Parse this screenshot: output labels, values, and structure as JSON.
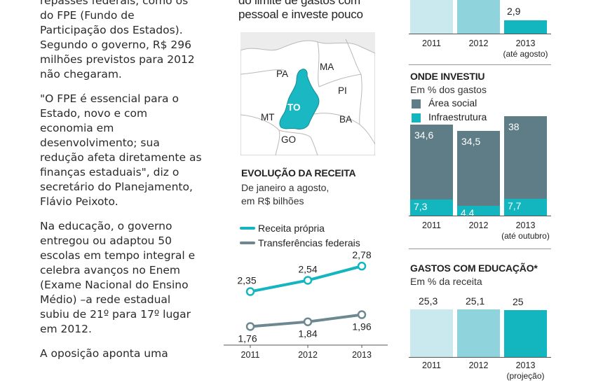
{
  "article": {
    "para1": [
      "repasses federais, como os",
      "do FPE (Fundo de",
      "Participação dos Estados).",
      "Segundo o governo, R$ 296",
      "milhões previstos para 2012",
      "não chegaram."
    ],
    "para2": [
      "\"O FPE é essencial para o",
      "Estado, novo e com",
      "economia em",
      "desenvolvimento; sua",
      "redução afeta diretamente as",
      "finanças estaduais\", diz o",
      "secretário do Planejamento,",
      "Flávio Peixoto."
    ],
    "para3": [
      "Na educação, o governo",
      "entregou ou adaptou 50",
      "escolas em tempo integral e",
      "celebra avanços no Enem",
      "(Exame Nacional do Ensino",
      "Médio) –a rede estadual",
      "subiu de 21º para 17º lugar",
      "em 2012."
    ],
    "para4": [
      "A oposição aponta uma"
    ]
  },
  "middle_header": {
    "line1": "do limite de gastos com",
    "line2": "pessoal e investe pouco"
  },
  "map": {
    "labels": [
      "PA",
      "MA",
      "PI",
      "TO",
      "MT",
      "BA",
      "GO"
    ],
    "colors": {
      "highlight": "#1ab8c2",
      "land": "#ffffff",
      "background": "#ececec",
      "border": "#b9b9b9"
    }
  },
  "colors": {
    "light": "#c9e9ee",
    "mid": "#8fd3dd",
    "teal": "#13b5bf",
    "slate": "#5e7d86",
    "line_gray": "#6d8890"
  },
  "chart_data": [
    {
      "id": "top_bars_partial",
      "type": "bar",
      "categories": [
        "2011",
        "2012",
        "2013"
      ],
      "category_notes": [
        "",
        "",
        "(até agosto)"
      ],
      "values": [
        null,
        null,
        2.9
      ],
      "value_labels": [
        "",
        "",
        "2,9"
      ]
    },
    {
      "id": "onde_investiu",
      "type": "bar",
      "title": "ONDE INVESTIU",
      "subtitle": "Em % dos gastos",
      "categories": [
        "2011",
        "2012",
        "2013"
      ],
      "category_notes": [
        "",
        "",
        "(até outubro)"
      ],
      "series": [
        {
          "name": "Área social",
          "values": [
            34.6,
            34.5,
            38
          ],
          "labels": [
            "34,6",
            "34,5",
            "38"
          ]
        },
        {
          "name": "Infraestrutura",
          "values": [
            7.3,
            4.4,
            7.7
          ],
          "labels": [
            "7,3",
            "4,4",
            "7,7"
          ]
        }
      ]
    },
    {
      "id": "evolucao_receita",
      "type": "line",
      "title": "EVOLUÇÃO DA RECEITA",
      "subtitle_lines": [
        "De janeiro a agosto,",
        "em R$ bilhões"
      ],
      "x": [
        "2011",
        "2012",
        "2013"
      ],
      "series": [
        {
          "name": "Receita própria",
          "values": [
            2.35,
            2.54,
            2.78
          ],
          "labels": [
            "2,35",
            "2,54",
            "2,78"
          ]
        },
        {
          "name": "Transferências federais",
          "values": [
            1.76,
            1.84,
            1.96
          ],
          "labels": [
            "1,76",
            "1,84",
            "1,96"
          ]
        }
      ]
    },
    {
      "id": "gastos_educacao",
      "type": "bar",
      "title": "GASTOS COM EDUCAÇÃO*",
      "subtitle": "Em % da receita",
      "categories": [
        "2011",
        "2012",
        "2013"
      ],
      "category_notes": [
        "",
        "",
        "(projeção)"
      ],
      "values": [
        25.3,
        25.1,
        25
      ],
      "value_labels": [
        "25,3",
        "25,1",
        "25"
      ]
    }
  ]
}
